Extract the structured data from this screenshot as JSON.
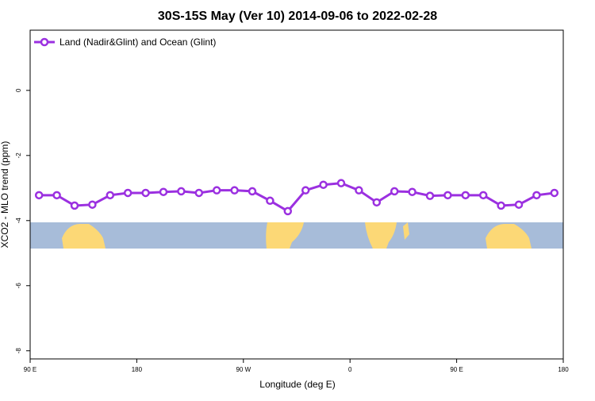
{
  "chart_data": {
    "type": "line",
    "title": "30S-15S May (Ver 10)   2014-09-06 to 2022-02-28",
    "xlabel": "Longitude (deg E)",
    "ylabel": "XCO2 - MLO trend (ppm)",
    "x": [
      97.5,
      112.5,
      127.5,
      142.5,
      157.5,
      172.5,
      187.5,
      202.5,
      217.5,
      232.5,
      247.5,
      262.5,
      277.5,
      292.5,
      307.5,
      322.5,
      337.5,
      352.5,
      367.5,
      382.5,
      397.5,
      412.5,
      427.5,
      442.5,
      457.5,
      472.5,
      487.5,
      502.5,
      517.5,
      532.5
    ],
    "series": [
      {
        "name": "Land (Nadir&Glint) and Ocean (Glint)",
        "color": "#9b30e0",
        "values": [
          -3.22,
          -3.22,
          -3.54,
          -3.51,
          -3.22,
          -3.15,
          -3.15,
          -3.12,
          -3.1,
          -3.15,
          -3.07,
          -3.07,
          -3.1,
          -3.39,
          -3.71,
          -3.07,
          -2.9,
          -2.85,
          -3.07,
          -3.44,
          -3.1,
          -3.12,
          -3.24,
          -3.22,
          -3.22,
          -3.22,
          -3.54,
          -3.51,
          -3.22,
          -3.15
        ]
      }
    ],
    "xlim": [
      90,
      540
    ],
    "xticks": [
      {
        "value": 90,
        "label": "90 E"
      },
      {
        "value": 180,
        "label": "180"
      },
      {
        "value": 270,
        "label": "90 W"
      },
      {
        "value": 360,
        "label": "0"
      },
      {
        "value": 450,
        "label": "90 E"
      },
      {
        "value": 540,
        "label": "180"
      }
    ],
    "ylim": [
      -8.25,
      1.85
    ],
    "yticks": [
      0,
      -2,
      -4,
      -6,
      -8
    ],
    "legend": "top-left"
  }
}
